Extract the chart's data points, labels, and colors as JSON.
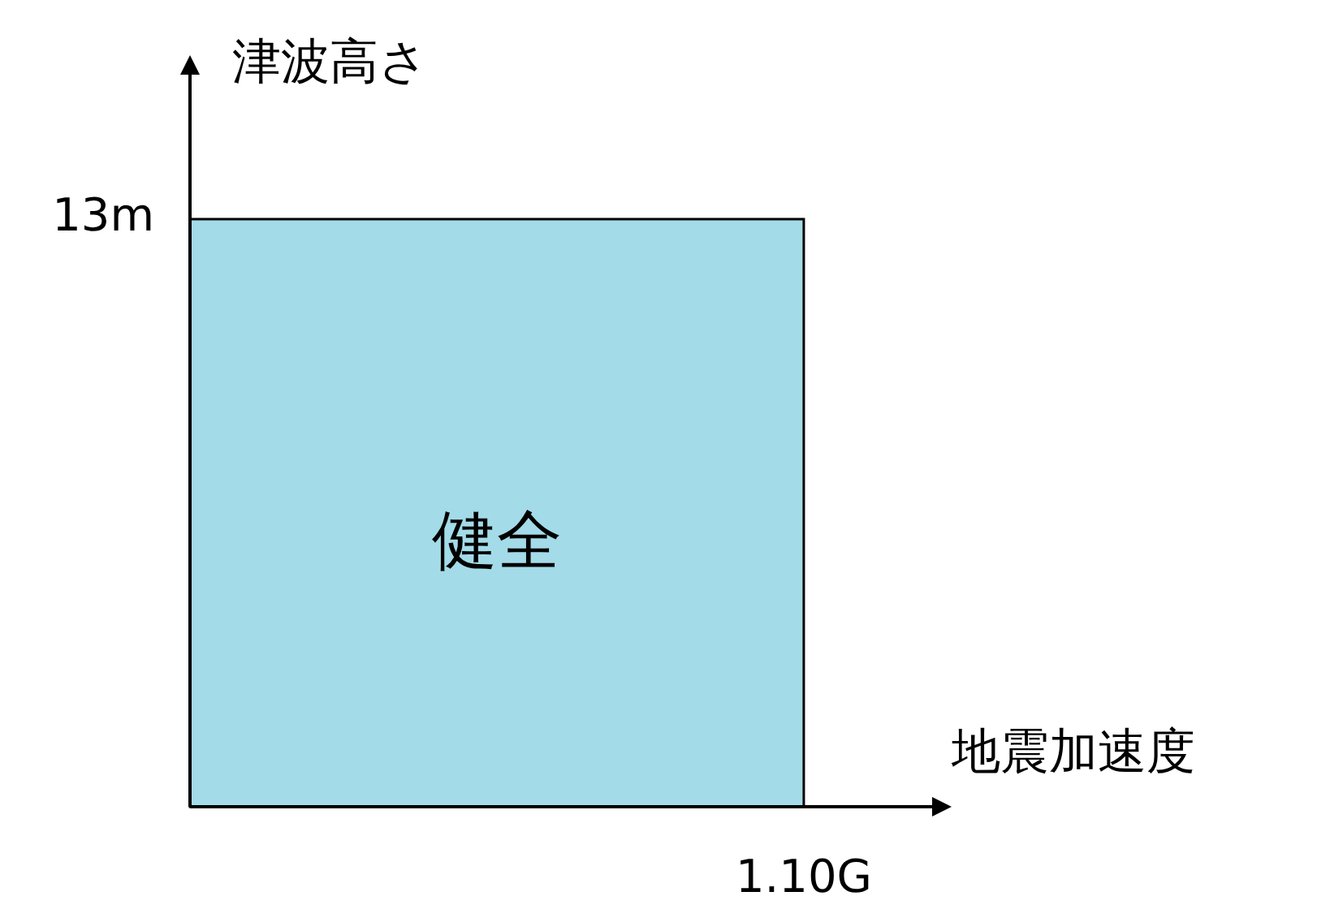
{
  "chart_data": {
    "type": "other",
    "color": "#a3dbe8",
    "xlabel": "地震加速度",
    "ylabel": "津波高さ",
    "values": [
      13,
      1.1
    ],
    "value_labels": [
      "13m",
      "1.10G"
    ],
    "annotations": [
      "健全"
    ]
  }
}
